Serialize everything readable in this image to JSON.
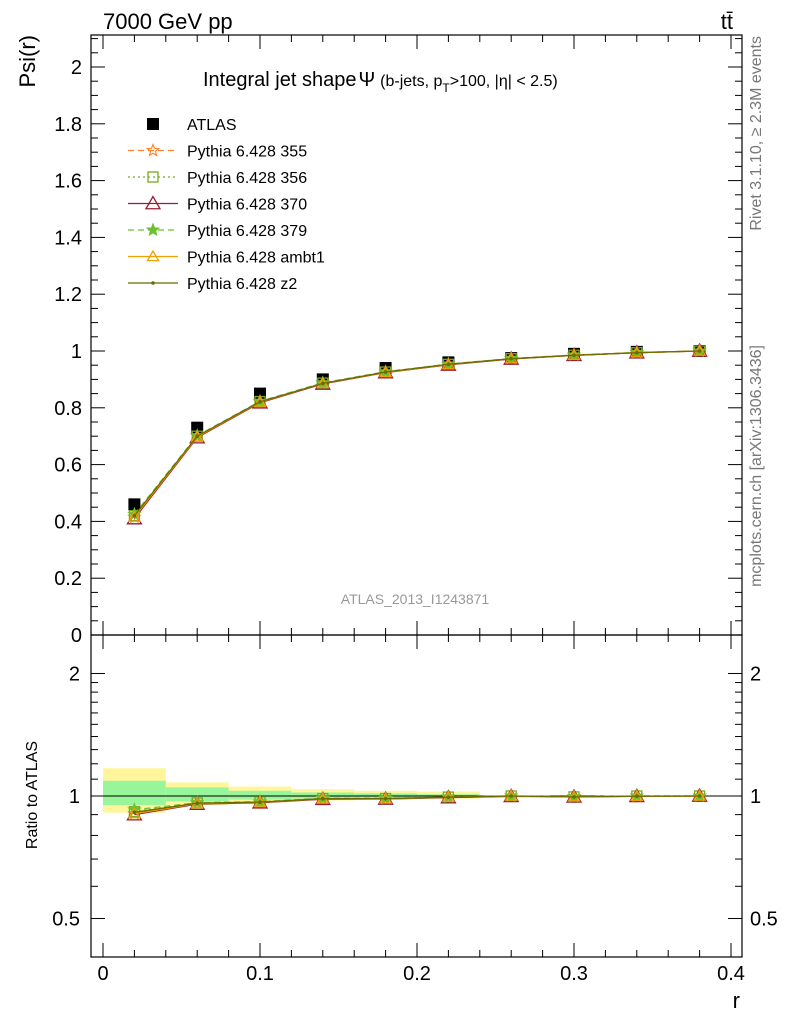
{
  "header": {
    "left": "7000 GeV pp",
    "right": "tt̄"
  },
  "side_labels": {
    "rivet": "Rivet 3.1.10, ≥ 2.3M events",
    "mcplots": "mcplots.cern.ch [arXiv:1306.3436]"
  },
  "watermark": "ATLAS_2013_I1243871",
  "chart_data": [
    {
      "type": "line",
      "title": "Integral jet shape Ψ (b-jets, pT>100, |η| < 2.5)",
      "title_parts": {
        "main": "Integral jet shape",
        "psi": "Ψ",
        "open": "(b-jets, p",
        "sub": "T",
        "rest": ">100, |η| < 2.5)"
      },
      "ylabel": "Psi(r)",
      "xlabel": "r",
      "xlim": [
        0,
        0.4
      ],
      "ylim": [
        0,
        2.1
      ],
      "yticks": [
        "0",
        "0.2",
        "0.4",
        "0.6",
        "0.8",
        "1",
        "1.2",
        "1.4",
        "1.6",
        "1.8",
        "2"
      ],
      "xticks": [
        "0",
        "0.1",
        "0.2",
        "0.3",
        "0.4"
      ],
      "legend_position": "top-left",
      "x": [
        0.02,
        0.06,
        0.1,
        0.14,
        0.18,
        0.22,
        0.26,
        0.3,
        0.34,
        0.38
      ],
      "series": [
        {
          "name": "ATLAS",
          "color": "#000000",
          "marker": "square",
          "values": [
            0.46,
            0.73,
            0.85,
            0.9,
            0.94,
            0.96,
            0.975,
            0.99,
            0.997,
            1.0
          ]
        },
        {
          "name": "Pythia 6.428 355",
          "color": "#ff7f2a",
          "marker": "star",
          "dash": "6,4",
          "values": [
            0.415,
            0.7,
            0.82,
            0.885,
            0.925,
            0.952,
            0.973,
            0.985,
            0.994,
            1.0
          ]
        },
        {
          "name": "Pythia 6.428 356",
          "color": "#7aaa1e",
          "marker": "open-square",
          "dash": "2,3",
          "values": [
            0.42,
            0.7,
            0.822,
            0.887,
            0.926,
            0.953,
            0.973,
            0.985,
            0.994,
            1.0
          ]
        },
        {
          "name": "Pythia 6.428 370",
          "color": "#9b1b30",
          "marker": "open-triangle-large",
          "values": [
            0.41,
            0.695,
            0.818,
            0.884,
            0.924,
            0.951,
            0.972,
            0.985,
            0.994,
            1.0
          ]
        },
        {
          "name": "Pythia 6.428 379",
          "color": "#6cbf2f",
          "marker": "filled-star",
          "dash": "6,4",
          "values": [
            0.425,
            0.702,
            0.823,
            0.888,
            0.927,
            0.954,
            0.974,
            0.986,
            0.995,
            1.0
          ]
        },
        {
          "name": "Pythia 6.428 ambt1",
          "color": "#f0a000",
          "marker": "open-triangle",
          "values": [
            0.415,
            0.698,
            0.82,
            0.886,
            0.925,
            0.952,
            0.973,
            0.985,
            0.994,
            1.0
          ]
        },
        {
          "name": "Pythia 6.428 z2",
          "color": "#6b6b00",
          "marker": "dot",
          "values": [
            0.42,
            0.7,
            0.821,
            0.886,
            0.926,
            0.953,
            0.973,
            0.985,
            0.994,
            1.0
          ]
        }
      ]
    },
    {
      "type": "line",
      "ylabel": "Ratio to ATLAS",
      "xlabel": "r",
      "xlim": [
        0,
        0.4
      ],
      "ylim": [
        0.39,
        2.3
      ],
      "yscale": "log",
      "yticks": [
        "0.5",
        "1",
        "2"
      ],
      "xticks": [
        "0",
        "0.1",
        "0.2",
        "0.3",
        "0.4"
      ],
      "x": [
        0.02,
        0.06,
        0.1,
        0.14,
        0.18,
        0.22,
        0.26,
        0.3,
        0.34,
        0.38
      ],
      "bins": [
        [
          0.0,
          0.04
        ],
        [
          0.04,
          0.08
        ],
        [
          0.08,
          0.12
        ],
        [
          0.12,
          0.16
        ],
        [
          0.16,
          0.2
        ],
        [
          0.2,
          0.24
        ],
        [
          0.24,
          0.28
        ],
        [
          0.28,
          0.32
        ],
        [
          0.32,
          0.36
        ],
        [
          0.36,
          0.4
        ]
      ],
      "band_outer": [
        [
          0.91,
          1.17
        ],
        [
          0.95,
          1.08
        ],
        [
          0.965,
          1.055
        ],
        [
          0.975,
          1.04
        ],
        [
          0.98,
          1.03
        ],
        [
          0.985,
          1.025
        ],
        [
          0.995,
          1.005
        ],
        [
          0.997,
          1.003
        ],
        [
          0.998,
          1.002
        ],
        [
          0.999,
          1.001
        ]
      ],
      "band_inner": [
        [
          0.95,
          1.09
        ],
        [
          0.97,
          1.05
        ],
        [
          0.98,
          1.03
        ],
        [
          0.985,
          1.02
        ],
        [
          0.99,
          1.015
        ],
        [
          0.992,
          1.01
        ],
        [
          0.997,
          1.003
        ],
        [
          0.998,
          1.002
        ],
        [
          0.999,
          1.001
        ],
        [
          0.9995,
          1.0005
        ]
      ],
      "band_colors": {
        "outer": "#fff59a",
        "inner": "#99f59a"
      },
      "series": [
        {
          "name": "Pythia 6.428 355",
          "color": "#ff7f2a",
          "marker": "star",
          "dash": "6,4",
          "values": [
            0.905,
            0.96,
            0.965,
            0.985,
            0.985,
            0.993,
            1.0,
            0.995,
            1.0,
            1.0
          ]
        },
        {
          "name": "Pythia 6.428 356",
          "color": "#7aaa1e",
          "marker": "open-square",
          "dash": "2,3",
          "values": [
            0.915,
            0.962,
            0.967,
            0.986,
            0.986,
            0.994,
            1.0,
            0.995,
            1.0,
            1.0
          ]
        },
        {
          "name": "Pythia 6.428 370",
          "color": "#9b1b30",
          "marker": "open-triangle-large",
          "values": [
            0.9,
            0.955,
            0.963,
            0.982,
            0.983,
            0.991,
            0.998,
            0.995,
            0.998,
            1.0
          ]
        },
        {
          "name": "Pythia 6.428 379",
          "color": "#6cbf2f",
          "marker": "filled-star",
          "dash": "6,4",
          "values": [
            0.925,
            0.963,
            0.968,
            0.987,
            0.987,
            0.994,
            1.0,
            0.996,
            1.0,
            1.0
          ]
        },
        {
          "name": "Pythia 6.428 ambt1",
          "color": "#f0a000",
          "marker": "open-triangle",
          "values": [
            0.905,
            0.958,
            0.965,
            0.984,
            0.984,
            0.993,
            1.0,
            0.995,
            0.999,
            1.0
          ]
        },
        {
          "name": "Pythia 6.428 z2",
          "color": "#6b6b00",
          "marker": "dot",
          "values": [
            0.912,
            0.96,
            0.966,
            0.985,
            0.985,
            0.993,
            1.0,
            0.995,
            0.999,
            1.0
          ]
        }
      ]
    }
  ]
}
